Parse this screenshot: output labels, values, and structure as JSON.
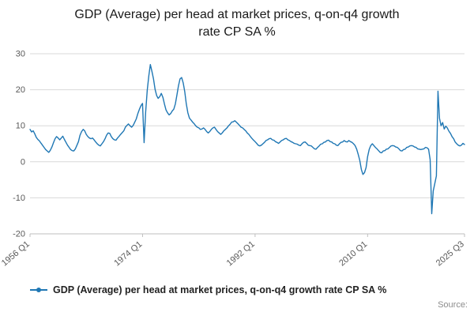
{
  "title": {
    "line1": "GDP (Average) per head at market prices, q-on-q4 growth",
    "line2": "rate CP SA %"
  },
  "legend": {
    "label": "GDP (Average) per head at market prices, q-on-q4 growth rate CP SA %"
  },
  "source_label": "Source:",
  "chart_data": {
    "type": "line",
    "title": "GDP (Average) per head at market prices, q-on-q4 growth rate CP SA %",
    "xlabel": "",
    "ylabel": "",
    "ylim": [
      -20,
      30
    ],
    "y_ticks": [
      -20,
      -10,
      0,
      10,
      20,
      30
    ],
    "grid": "horizontal",
    "legend_position": "bottom-left",
    "line_color": "#1f77b4",
    "frequency": "quarterly",
    "x_start": "1956 Q1",
    "x_end": "2025 Q3",
    "x_tick_labels": [
      "1956 Q1",
      "1974 Q1",
      "1992 Q1",
      "2010 Q1",
      "2025 Q3"
    ],
    "x_tick_positions_index": [
      0,
      72,
      144,
      216,
      278
    ],
    "values": [
      9.0,
      8.3,
      8.6,
      7.8,
      6.8,
      6.2,
      5.8,
      5.2,
      4.6,
      4.0,
      3.4,
      3.0,
      2.6,
      3.2,
      4.1,
      5.3,
      6.4,
      7.0,
      6.6,
      6.1,
      6.6,
      7.1,
      6.2,
      5.4,
      4.6,
      4.0,
      3.4,
      3.1,
      3.0,
      3.6,
      4.6,
      5.6,
      7.4,
      8.4,
      9.0,
      8.6,
      7.6,
      7.0,
      6.6,
      6.4,
      6.6,
      6.1,
      5.5,
      5.0,
      4.6,
      4.4,
      5.0,
      5.6,
      6.4,
      7.4,
      8.0,
      7.9,
      7.0,
      6.4,
      6.1,
      6.0,
      6.6,
      7.1,
      7.6,
      8.1,
      8.6,
      9.6,
      10.1,
      10.5,
      10.0,
      9.6,
      10.1,
      11.0,
      11.9,
      13.4,
      14.6,
      15.6,
      16.2,
      5.3,
      13.9,
      19.9,
      23.9,
      27.0,
      25.1,
      23.0,
      20.1,
      18.4,
      17.6,
      18.1,
      19.0,
      17.9,
      16.1,
      14.4,
      13.6,
      13.0,
      13.4,
      14.1,
      14.6,
      16.1,
      18.6,
      21.1,
      23.0,
      23.4,
      21.9,
      19.4,
      16.1,
      13.6,
      12.1,
      11.6,
      11.0,
      10.6,
      10.0,
      9.6,
      9.4,
      9.0,
      9.1,
      9.4,
      9.0,
      8.4,
      8.0,
      8.4,
      9.0,
      9.4,
      9.6,
      9.0,
      8.4,
      8.0,
      7.6,
      8.0,
      8.6,
      9.0,
      9.4,
      10.0,
      10.4,
      11.0,
      11.1,
      11.4,
      11.0,
      10.6,
      10.1,
      9.6,
      9.4,
      9.0,
      8.6,
      8.0,
      7.6,
      7.0,
      6.5,
      6.0,
      5.6,
      5.1,
      4.6,
      4.4,
      4.6,
      5.0,
      5.4,
      5.9,
      6.1,
      6.4,
      6.5,
      6.1,
      6.0,
      5.6,
      5.4,
      5.1,
      5.5,
      5.9,
      6.1,
      6.4,
      6.5,
      6.1,
      5.9,
      5.6,
      5.4,
      5.1,
      5.0,
      4.9,
      4.6,
      4.5,
      5.0,
      5.4,
      5.5,
      5.1,
      4.6,
      4.5,
      4.4,
      4.0,
      3.6,
      3.5,
      4.0,
      4.4,
      4.9,
      5.0,
      5.4,
      5.5,
      5.9,
      6.0,
      5.6,
      5.5,
      5.1,
      5.0,
      4.6,
      4.5,
      5.0,
      5.4,
      5.5,
      5.9,
      5.6,
      5.5,
      5.9,
      5.6,
      5.4,
      5.0,
      4.5,
      3.5,
      2.0,
      0.4,
      -2.1,
      -3.5,
      -3.0,
      -1.6,
      1.4,
      3.4,
      4.5,
      5.0,
      4.5,
      4.0,
      3.6,
      3.1,
      2.6,
      2.5,
      3.0,
      3.1,
      3.5,
      3.6,
      4.0,
      4.4,
      4.5,
      4.4,
      4.1,
      4.0,
      3.6,
      3.1,
      3.0,
      3.4,
      3.5,
      4.0,
      4.1,
      4.4,
      4.5,
      4.4,
      4.1,
      4.0,
      3.6,
      3.5,
      3.4,
      3.5,
      3.6,
      4.0,
      3.9,
      3.5,
      0.6,
      -14.4,
      -8.1,
      -6.0,
      -3.9,
      19.6,
      12.1,
      10.0,
      10.9,
      9.1,
      9.9,
      9.4,
      8.5,
      7.9,
      7.0,
      6.4,
      5.5,
      5.0,
      4.6,
      4.4,
      4.6,
      5.1,
      4.8
    ]
  }
}
